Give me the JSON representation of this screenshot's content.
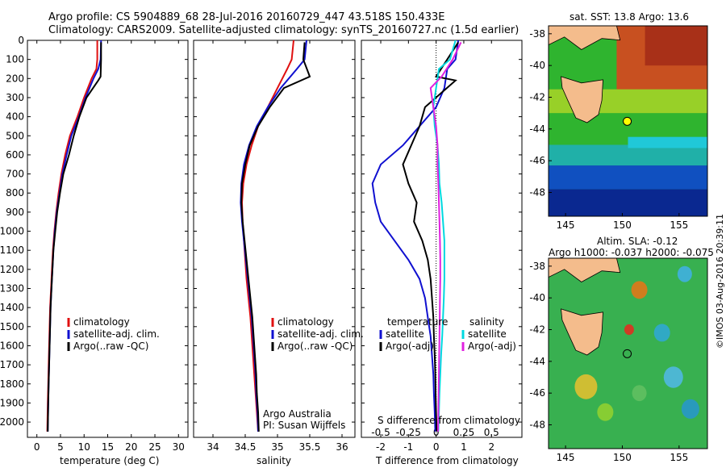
{
  "header": {
    "line1": "Argo profile: CS 5904889_68 28-Jul-2016 20160729_447 43.518S 150.433E",
    "line2": "Climatology: CARS2009. Satellite-adjusted climatology: synTS_20160727.nc (1.5d earlier)"
  },
  "colors": {
    "climatology": "#e01010",
    "satellite": "#1010d0",
    "argo": "#000000",
    "sal_satellite": "#00d8e0",
    "sal_argo": "#e020e0"
  },
  "depth_ticks": [
    0,
    100,
    200,
    300,
    400,
    500,
    600,
    700,
    800,
    900,
    1000,
    1100,
    1200,
    1300,
    1400,
    1500,
    1600,
    1700,
    1800,
    1900,
    2000
  ],
  "chart_data": [
    {
      "type": "line",
      "xlabel": "temperature (deg C)",
      "xlim": [
        -2,
        32
      ],
      "ylim": [
        2080,
        0
      ],
      "xticks": [
        0,
        5,
        10,
        15,
        20,
        25,
        30
      ],
      "legend": [
        "climatology",
        "satellite-adj. clim.",
        "Argo(..raw -QC)"
      ],
      "legend_position": "lower-middle",
      "series": [
        {
          "name": "climatology",
          "color": "#e01010",
          "x": [
            12.8,
            12.8,
            12.6,
            11.6,
            10.0,
            8.6,
            7.0,
            6.0,
            5.2,
            4.6,
            4.1,
            3.7,
            3.4,
            3.2,
            3.0,
            2.8,
            2.7,
            2.6,
            2.5,
            2.4,
            2.3,
            2.2
          ],
          "y": [
            0,
            100,
            150,
            200,
            300,
            400,
            500,
            600,
            700,
            800,
            900,
            1000,
            1100,
            1200,
            1300,
            1400,
            1500,
            1600,
            1700,
            1800,
            1900,
            2050
          ]
        },
        {
          "name": "satellite-adj. clim.",
          "color": "#1010d0",
          "x": [
            13.6,
            13.5,
            13.0,
            12.0,
            10.3,
            8.9,
            7.3,
            6.3,
            5.4,
            4.8,
            4.2,
            3.8,
            3.5,
            3.3,
            3.1,
            2.9,
            2.8,
            2.7,
            2.6,
            2.5,
            2.4,
            2.3
          ],
          "y": [
            0,
            100,
            150,
            200,
            300,
            400,
            500,
            600,
            700,
            800,
            900,
            1000,
            1100,
            1200,
            1300,
            1400,
            1500,
            1600,
            1700,
            1800,
            1900,
            2050
          ]
        },
        {
          "name": "Argo(..raw -QC)",
          "color": "#000000",
          "x": [
            13.6,
            13.6,
            13.5,
            13.0,
            10.5,
            9.0,
            7.8,
            6.8,
            5.6,
            4.9,
            4.3,
            3.9,
            3.5,
            3.3,
            3.1,
            2.9,
            2.8,
            2.7,
            2.6,
            2.5,
            2.4,
            2.3
          ],
          "y": [
            10,
            100,
            190,
            210,
            300,
            400,
            500,
            600,
            700,
            800,
            900,
            1000,
            1100,
            1200,
            1300,
            1400,
            1500,
            1600,
            1700,
            1800,
            1900,
            2050
          ]
        }
      ]
    },
    {
      "type": "line",
      "xlabel": "salinity",
      "xlim": [
        33.7,
        36.2
      ],
      "ylim": [
        2080,
        0
      ],
      "xticks": [
        34,
        34.5,
        35,
        35.5,
        36
      ],
      "legend": [
        "climatology",
        "satellite-adj. clim.",
        "Argo(..raw -QC)"
      ],
      "legend_position": "lower-right",
      "annotations": [
        "Argo Australia",
        "PI: Susan Wijffels"
      ],
      "series": [
        {
          "name": "climatology",
          "color": "#e01010",
          "x": [
            35.25,
            35.22,
            35.15,
            35.0,
            34.85,
            34.7,
            34.6,
            34.52,
            34.47,
            34.45,
            34.46,
            34.48,
            34.5,
            34.52,
            34.55,
            34.58,
            34.6,
            34.62,
            34.64,
            34.66,
            34.68,
            34.7
          ],
          "y": [
            0,
            100,
            150,
            250,
            350,
            450,
            550,
            650,
            750,
            850,
            950,
            1050,
            1150,
            1250,
            1350,
            1450,
            1550,
            1650,
            1750,
            1850,
            1950,
            2050
          ]
        },
        {
          "name": "satellite-adj. clim.",
          "color": "#1010d0",
          "x": [
            35.45,
            35.42,
            35.3,
            35.05,
            34.85,
            34.68,
            34.56,
            34.48,
            34.44,
            34.43,
            34.45,
            34.48,
            34.51,
            34.54,
            34.57,
            34.6,
            34.62,
            34.64,
            34.66,
            34.67,
            34.69,
            34.7
          ],
          "y": [
            0,
            100,
            150,
            250,
            350,
            450,
            550,
            650,
            750,
            850,
            950,
            1050,
            1150,
            1250,
            1350,
            1450,
            1550,
            1650,
            1750,
            1850,
            1950,
            2050
          ]
        },
        {
          "name": "Argo(..raw -QC)",
          "color": "#000000",
          "x": [
            35.42,
            35.4,
            35.5,
            35.1,
            34.88,
            34.7,
            34.57,
            34.5,
            34.45,
            34.44,
            34.46,
            34.49,
            34.52,
            34.55,
            34.58,
            34.61,
            34.63,
            34.65,
            34.67,
            34.68,
            34.7,
            34.71
          ],
          "y": [
            10,
            100,
            190,
            250,
            350,
            450,
            550,
            650,
            750,
            850,
            950,
            1050,
            1150,
            1250,
            1350,
            1450,
            1550,
            1650,
            1750,
            1850,
            1950,
            2050
          ]
        }
      ]
    },
    {
      "type": "line",
      "xlabel": "T difference from climatology",
      "xlabel_top": "S difference from climatology",
      "xlim": [
        -2.7,
        3.1
      ],
      "ylim": [
        2080,
        0
      ],
      "xticks": [
        -2,
        -1,
        0,
        1,
        2
      ],
      "xticks_top": [
        "-0.5",
        "-0.25",
        "0",
        "0.25",
        "0.5"
      ],
      "legend_temperature": {
        "title": "temperature",
        "entries": [
          "satellite",
          "Argo(-adj)"
        ]
      },
      "legend_salinity": {
        "title": "salinity",
        "entries": [
          "satellite",
          "Argo(-adj)"
        ]
      },
      "series": [
        {
          "name": "temperature satellite",
          "color": "#1010d0",
          "x": [
            0.8,
            0.7,
            0.4,
            0.3,
            0.0,
            -0.6,
            -1.2,
            -2.0,
            -2.3,
            -2.2,
            -2.0,
            -1.5,
            -1.0,
            -0.6,
            -0.4,
            -0.3,
            -0.2,
            -0.15,
            -0.1,
            -0.08,
            -0.05,
            -0.03
          ],
          "y": [
            0,
            100,
            150,
            250,
            350,
            450,
            550,
            650,
            750,
            850,
            950,
            1050,
            1150,
            1250,
            1350,
            1450,
            1550,
            1650,
            1750,
            1850,
            1950,
            2050
          ]
        },
        {
          "name": "temperature Argo(-adj)",
          "color": "#000000",
          "x": [
            0.8,
            0.4,
            0.0,
            0.7,
            -0.4,
            -0.6,
            -0.9,
            -1.2,
            -1.0,
            -0.7,
            -0.8,
            -0.5,
            -0.3,
            -0.2,
            -0.15,
            -0.1,
            -0.08,
            -0.05,
            -0.03,
            -0.02,
            0.0,
            0.02
          ],
          "y": [
            10,
            100,
            190,
            210,
            350,
            450,
            550,
            650,
            750,
            850,
            950,
            1050,
            1150,
            1250,
            1350,
            1450,
            1550,
            1650,
            1750,
            1850,
            1950,
            2050
          ]
        },
        {
          "name": "salinity satellite",
          "color": "#00d8e0",
          "x": [
            0.7,
            0.5,
            0.1,
            0.0,
            -0.1,
            -0.05,
            0.05,
            0.1,
            0.12,
            0.2,
            0.25,
            0.3,
            0.3,
            0.3,
            0.28,
            0.25,
            0.22,
            0.18,
            0.15,
            0.12,
            0.1,
            0.08
          ],
          "y": [
            0,
            100,
            150,
            250,
            350,
            450,
            550,
            650,
            750,
            850,
            950,
            1050,
            1150,
            1250,
            1350,
            1450,
            1550,
            1650,
            1750,
            1850,
            1950,
            2050
          ]
        },
        {
          "name": "salinity Argo(-adj)",
          "color": "#e020e0",
          "x": [
            0.9,
            0.6,
            0.2,
            -0.2,
            -0.1,
            0.0,
            0.05,
            0.05,
            0.08,
            0.1,
            0.12,
            0.14,
            0.15,
            0.15,
            0.14,
            0.13,
            0.12,
            0.11,
            0.1,
            0.09,
            0.08,
            0.07
          ],
          "y": [
            10,
            100,
            190,
            250,
            350,
            450,
            550,
            650,
            750,
            850,
            950,
            1050,
            1150,
            1250,
            1350,
            1450,
            1550,
            1650,
            1750,
            1850,
            1950,
            2050
          ]
        }
      ]
    },
    {
      "type": "heatmap",
      "title": "sat. SST: 13.8 Argo: 13.6",
      "xlim": [
        143.5,
        157.5
      ],
      "ylim": [
        -49.5,
        -37.5
      ],
      "xticks": [
        145,
        150,
        155
      ],
      "yticks": [
        -38,
        -40,
        -42,
        -44,
        -46,
        -48
      ],
      "marker": {
        "lon": 150.433,
        "lat": -43.518,
        "color": "#ffff00"
      }
    },
    {
      "type": "heatmap",
      "title": "Altim. SLA: -0.12",
      "subtitle": "Argo h1000: -0.037 h2000: -0.075",
      "xlim": [
        143.5,
        157.5
      ],
      "ylim": [
        -49.5,
        -37.5
      ],
      "xticks": [
        145,
        150,
        155
      ],
      "yticks": [
        -38,
        -40,
        -42,
        -44,
        -46,
        -48
      ],
      "marker": {
        "lon": 150.433,
        "lat": -43.518,
        "color": "none"
      }
    }
  ],
  "footer": {
    "stamp": "©IMOS 03-Aug-2016 20:39:11"
  }
}
